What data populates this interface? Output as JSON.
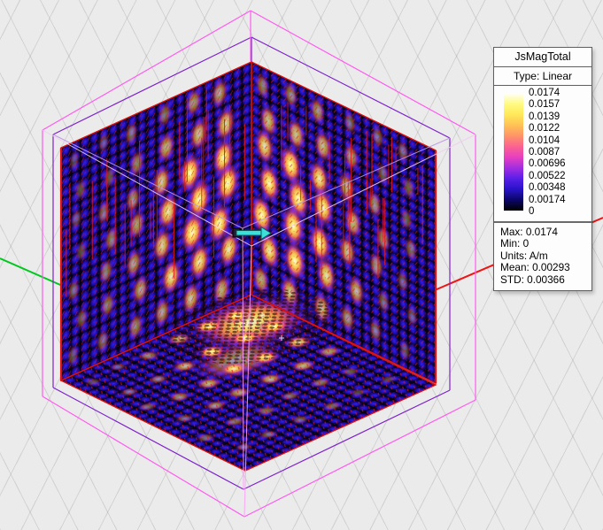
{
  "legend": {
    "title": "JsMagTotal",
    "type_label": "Type: Linear",
    "scale_labels": [
      "0.0174",
      "0.0157",
      "0.0139",
      "0.0122",
      "0.0104",
      "0.0087",
      "0.00696",
      "0.00522",
      "0.00348",
      "0.00174",
      "0"
    ],
    "stats": {
      "max": "Max: 0.0174",
      "min": "Min: 0",
      "units": "Units: A/m",
      "mean": "Mean: 0.00293",
      "std": "STD: 0.00366"
    }
  },
  "colors": {
    "background": "#ebebeb",
    "grid_line": "#d2d2d2",
    "axis_x_red": "#f01414",
    "axis_y_green": "#00c81e",
    "wireframe_outer_magenta": "#ff5cf0",
    "wireframe_inner_purple": "#7e22cc",
    "wireframe_near_pale": "rgba(240,205,242,0.9)",
    "wireframe_near_lavender": "rgba(187,150,228,0.9)",
    "data_edge_red": "#dd1111",
    "field_tick_red": "#e11616",
    "source_arrow_cyan": "#3ce0d8",
    "colormap": [
      "#ffffff",
      "#fffb84",
      "#ffe95a",
      "#ffc355",
      "#ff9468",
      "#fb6390",
      "#e83fc0",
      "#a32ee0",
      "#5a1fe8",
      "#2813c8",
      "#0b0668",
      "#000000"
    ]
  },
  "icons": {
    "source_arrow": "excitation-arrow-icon"
  }
}
